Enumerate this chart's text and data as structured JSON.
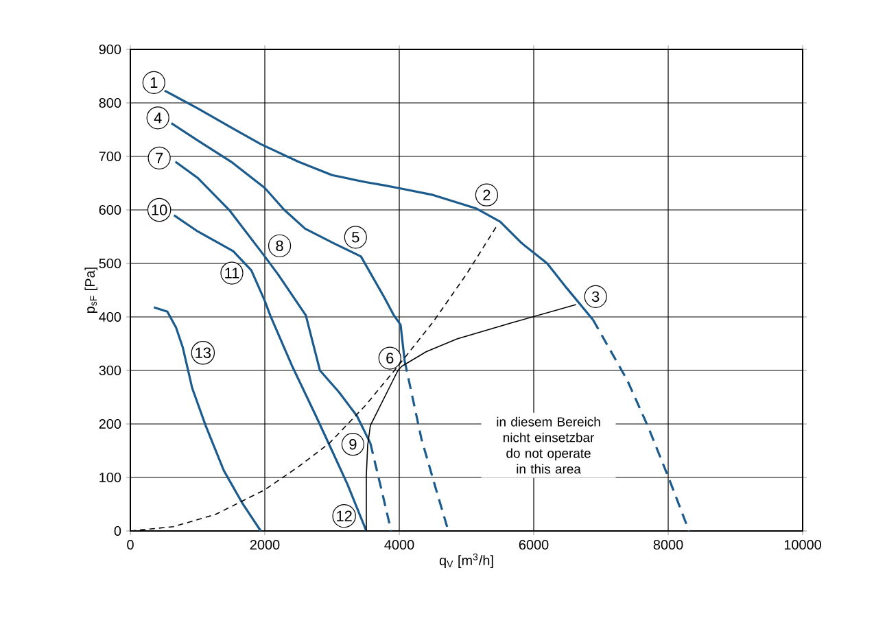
{
  "chart_data": {
    "type": "line",
    "xlabel": "q$_{V}$ [m$^{3}$/h]",
    "ylabel": "p$_{sF}$ [Pa]",
    "xlim": [
      0,
      10000
    ],
    "ylim": [
      0,
      900
    ],
    "xticks": [
      0,
      2000,
      4000,
      6000,
      8000,
      10000
    ],
    "yticks": [
      0,
      100,
      200,
      300,
      400,
      500,
      600,
      700,
      800,
      900
    ],
    "grid": true,
    "marker": "none",
    "series": [
      {
        "color": "#1a5a8c",
        "line_style": "solid",
        "x": [
          510,
          1000,
          1500,
          1940,
          2500,
          3000,
          3500,
          3775,
          3980,
          4500,
          5140,
          5500,
          5820,
          6200,
          6490,
          6880
        ],
        "values": [
          823,
          790,
          754,
          723,
          690,
          665,
          652,
          646,
          641,
          628,
          603,
          578,
          538,
          500,
          454,
          395
        ]
      },
      {
        "color": "#1a5a8c",
        "line_style": "dashed",
        "x": [
          6880,
          7390,
          7700,
          8020,
          8310
        ],
        "values": [
          395,
          282,
          195,
          95,
          0
        ]
      },
      {
        "color": "#1a5a8c",
        "line_style": "solid",
        "x": [
          610,
          1000,
          1500,
          2000,
          2290,
          2600,
          3020,
          3430,
          3780,
          3920,
          4020,
          4080
        ],
        "values": [
          762,
          730,
          690,
          641,
          600,
          565,
          538,
          513,
          436,
          403,
          385,
          318
        ]
      },
      {
        "color": "#1a5a8c",
        "line_style": "dashed",
        "x": [
          4080,
          4330,
          4530,
          4730
        ],
        "values": [
          318,
          172,
          85,
          0
        ]
      },
      {
        "color": "#1a5a8c",
        "line_style": "solid",
        "x": [
          670,
          1000,
          1470,
          2000,
          2200,
          2610,
          2820,
          3100,
          3370,
          3570
        ],
        "values": [
          690,
          660,
          600,
          513,
          479,
          403,
          300,
          260,
          215,
          164
        ]
      },
      {
        "color": "#1a5a8c",
        "line_style": "dashed",
        "x": [
          3570,
          3730,
          3880
        ],
        "values": [
          164,
          80,
          0
        ]
      },
      {
        "color": "#1a5a8c",
        "line_style": "solid",
        "x": [
          650,
          1000,
          1530,
          1800,
          2000,
          2080,
          2400,
          2760,
          3000,
          3230,
          3510
        ],
        "values": [
          590,
          560,
          523,
          487,
          430,
          403,
          310,
          215,
          150,
          87,
          0
        ]
      },
      {
        "color": "#1a5a8c",
        "line_style": "solid",
        "x": [
          350,
          550,
          680,
          780,
          920,
          1120,
          1390,
          1670,
          1940
        ],
        "values": [
          418,
          410,
          380,
          343,
          267,
          197,
          113,
          51,
          0
        ]
      },
      {
        "color": "#000000",
        "line_style": "dashed",
        "x": [
          0,
          640,
          1270,
          2000,
          2500,
          2960,
          3500,
          3980,
          4500,
          5000,
          5470
        ],
        "values": [
          0,
          8,
          31,
          77,
          120,
          164,
          235,
          308,
          390,
          480,
          574
        ]
      },
      {
        "color": "#000000",
        "line_style": "solid",
        "x": [
          3510,
          3510,
          3530,
          3570,
          3980,
          4040,
          4400,
          4860,
          5700,
          6630
        ],
        "values": [
          0,
          103,
          160,
          197,
          300,
          308,
          335,
          359,
          390,
          423
        ]
      }
    ],
    "annotations": [
      {
        "text": "1",
        "x": 350,
        "y": 838
      },
      {
        "text": "2",
        "x": 5300,
        "y": 628
      },
      {
        "text": "3",
        "x": 6920,
        "y": 438
      },
      {
        "text": "4",
        "x": 410,
        "y": 772
      },
      {
        "text": "5",
        "x": 3350,
        "y": 549
      },
      {
        "text": "6",
        "x": 3860,
        "y": 323
      },
      {
        "text": "7",
        "x": 430,
        "y": 697
      },
      {
        "text": "8",
        "x": 2220,
        "y": 533
      },
      {
        "text": "9",
        "x": 3310,
        "y": 162
      },
      {
        "text": "10",
        "x": 430,
        "y": 600
      },
      {
        "text": "11",
        "x": 1510,
        "y": 482
      },
      {
        "text": "12",
        "x": 3180,
        "y": 28
      },
      {
        "text": "13",
        "x": 1080,
        "y": 333
      },
      "in diesem Bereich nicht einsetzbar do not operate in this area"
    ]
  }
}
